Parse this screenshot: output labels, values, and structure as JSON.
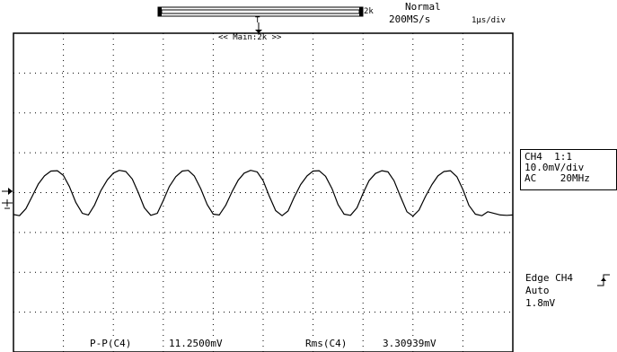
{
  "header": {
    "memory_label": "2k",
    "acquisition_mode": "Normal",
    "sample_rate": "200MS/s",
    "timebase": "1µs/div",
    "trigger_position_marker": "T",
    "zoom_label": "<< Main:2k >>"
  },
  "channel_info": {
    "probe": "CH4  1:1",
    "vdiv": "10.0mV/div",
    "coupling": "AC    20MHz"
  },
  "trigger_info": {
    "type": "Edge CH4",
    "mode": "Auto",
    "level": "1.8mV"
  },
  "measurements": {
    "pp_label": "P-P(C4)",
    "pp_value": "11.2500mV",
    "rms_label": "Rms(C4)",
    "rms_value": "3.30939mV"
  },
  "colors": {
    "trace": "#000000",
    "grid": "#000000",
    "background": "#ffffff"
  },
  "chart_data": {
    "type": "line",
    "title": "",
    "xlabel": "",
    "ylabel": "",
    "x_unit": "µs",
    "y_unit": "mV",
    "xlim": [
      0,
      10
    ],
    "ylim": [
      -40,
      40
    ],
    "grid": true,
    "series": [
      {
        "values_x": [
          0,
          0.12,
          0.25,
          0.38,
          0.5,
          0.62,
          0.75,
          0.88,
          1.0,
          1.12,
          1.25,
          1.38,
          1.5,
          1.62,
          1.75,
          1.88,
          2.0,
          2.12,
          2.25,
          2.38,
          2.5,
          2.62,
          2.75,
          2.88,
          3.0,
          3.12,
          3.25,
          3.38,
          3.5,
          3.62,
          3.75,
          3.88,
          4.0,
          4.12,
          4.25,
          4.38,
          4.5,
          4.62,
          4.75,
          4.88,
          5.0,
          5.12,
          5.25,
          5.38,
          5.5,
          5.62,
          5.75,
          5.88,
          6.0,
          6.12,
          6.25,
          6.38,
          6.5,
          6.62,
          6.75,
          6.88,
          7.0,
          7.12,
          7.25,
          7.38,
          7.5,
          7.62,
          7.75,
          7.88,
          8.0,
          8.12,
          8.25,
          8.38,
          8.5,
          8.62,
          8.75,
          8.88,
          9.0,
          9.12,
          9.25,
          9.38,
          9.5,
          9.62,
          9.75,
          9.88,
          10.0
        ],
        "values_y": [
          -5.5,
          -5.8,
          -4.0,
          -0.8,
          2.2,
          4.2,
          5.4,
          5.5,
          4.3,
          1.5,
          -2.5,
          -5.2,
          -5.6,
          -3.2,
          0.5,
          3.2,
          4.9,
          5.6,
          5.3,
          3.4,
          0.0,
          -3.8,
          -5.7,
          -5.2,
          -2.0,
          1.5,
          4.0,
          5.4,
          5.6,
          4.2,
          1.0,
          -3.0,
          -5.4,
          -5.6,
          -3.2,
          0.3,
          3.1,
          4.9,
          5.6,
          5.2,
          3.0,
          -0.8,
          -4.5,
          -5.8,
          -4.6,
          -1.2,
          2.0,
          4.2,
          5.4,
          5.5,
          4.1,
          1.0,
          -3.0,
          -5.4,
          -5.7,
          -3.8,
          -0.2,
          3.0,
          4.8,
          5.5,
          5.2,
          3.0,
          -1.0,
          -4.8,
          -5.9,
          -4.4,
          -1.0,
          2.0,
          4.2,
          5.3,
          5.5,
          4.0,
          0.8,
          -3.2,
          -5.4,
          -5.8,
          -4.8,
          -5.2,
          -5.6,
          -5.7,
          -5.6
        ]
      }
    ]
  }
}
